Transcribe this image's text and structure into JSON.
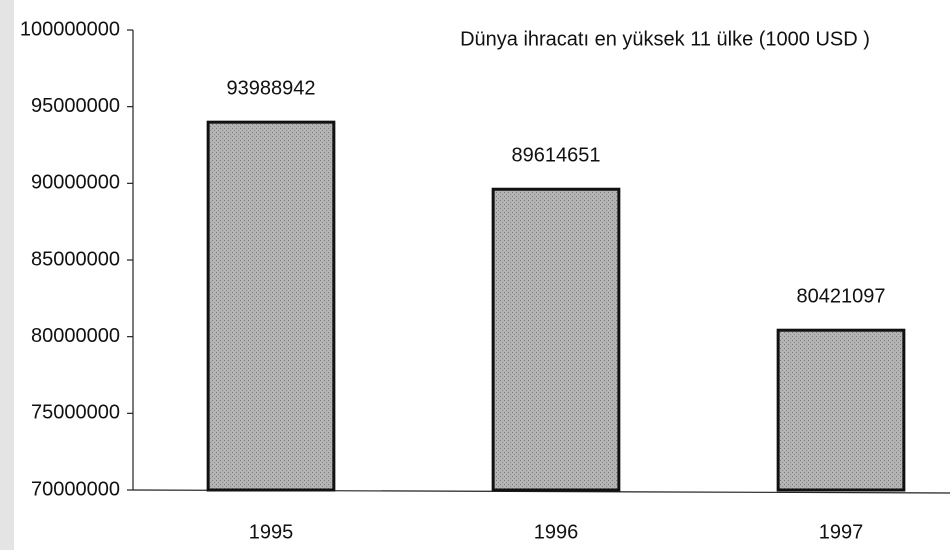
{
  "chart_data": {
    "type": "bar",
    "title": "Dünya ihracatı en yüksek 11 ülke (1000 USD )",
    "categories": [
      "1995",
      "1996",
      "1997"
    ],
    "values": [
      93988942,
      89614651,
      80421097
    ],
    "color": "#a9a9a9",
    "ylim": [
      70000000,
      100000000
    ],
    "yticks": [
      70000000,
      75000000,
      80000000,
      85000000,
      90000000,
      95000000,
      100000000
    ],
    "grid": false
  }
}
